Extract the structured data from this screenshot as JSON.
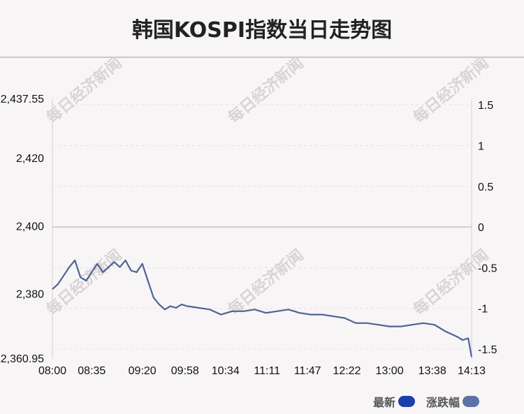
{
  "title": "韩国KOSPI指数当日走势图",
  "watermark": "每日经济新闻",
  "legend": [
    {
      "label": "最新",
      "color": "#1a3fa8"
    },
    {
      "label": "涨跌幅",
      "color": "#5b72a6"
    }
  ],
  "colors": {
    "line": "#4c6494",
    "zero_line": "#cfcfcf",
    "grid": "#e6e2e4"
  },
  "chart_data": {
    "type": "line",
    "title": "韩国KOSPI指数当日走势图",
    "y_left": {
      "min": 2360.95,
      "max": 2437.55,
      "ticks": [
        2360.95,
        2380,
        2400,
        2420,
        2437.55
      ],
      "tick_labels": [
        "2,360.95",
        "2,380",
        "2,400",
        "2,420",
        "2,437.55"
      ]
    },
    "y_right": {
      "min": -1.62,
      "max": 1.57,
      "ticks": [
        -1.5,
        -1,
        -0.5,
        0,
        0.5,
        1,
        1.5
      ],
      "tick_labels": [
        "-1.5",
        "-1",
        "-0.5",
        "0",
        "0.5",
        "1",
        "1.5"
      ]
    },
    "x_tick_labels": [
      "08:00",
      "08:35",
      "09:20",
      "09:58",
      "10:34",
      "11:11",
      "11:47",
      "12:22",
      "13:00",
      "13:38",
      "14:13"
    ],
    "grid": true,
    "legend_placement": "bottom-right",
    "series": [
      {
        "name": "最新",
        "x": [
          "08:00",
          "08:05",
          "08:10",
          "08:15",
          "08:20",
          "08:25",
          "08:30",
          "08:35",
          "08:40",
          "08:45",
          "08:50",
          "08:55",
          "09:00",
          "09:05",
          "09:10",
          "09:15",
          "09:20",
          "09:25",
          "09:30",
          "09:35",
          "09:40",
          "09:45",
          "09:50",
          "09:55",
          "10:00",
          "10:10",
          "10:20",
          "10:30",
          "10:40",
          "10:50",
          "11:00",
          "11:10",
          "11:20",
          "11:30",
          "11:40",
          "11:50",
          "12:00",
          "12:10",
          "12:20",
          "12:30",
          "12:40",
          "12:50",
          "13:00",
          "13:10",
          "13:20",
          "13:30",
          "13:40",
          "13:50",
          "14:00",
          "14:05",
          "14:10",
          "14:13"
        ],
        "values": [
          2381.5,
          2383.0,
          2385.5,
          2388.0,
          2390.0,
          2385.0,
          2384.0,
          2386.5,
          2389.0,
          2386.5,
          2388.0,
          2389.5,
          2388.0,
          2390.0,
          2387.0,
          2386.5,
          2389.0,
          2384.0,
          2379.0,
          2377.0,
          2375.5,
          2376.5,
          2376.0,
          2377.0,
          2376.5,
          2376.0,
          2375.5,
          2374.0,
          2375.0,
          2375.0,
          2375.5,
          2374.5,
          2375.0,
          2375.5,
          2374.5,
          2374.0,
          2374.0,
          2373.5,
          2373.0,
          2371.5,
          2371.5,
          2371.0,
          2370.5,
          2370.5,
          2371.0,
          2371.5,
          2371.0,
          2369.0,
          2367.5,
          2366.5,
          2367.0,
          2361.5
        ]
      }
    ]
  }
}
